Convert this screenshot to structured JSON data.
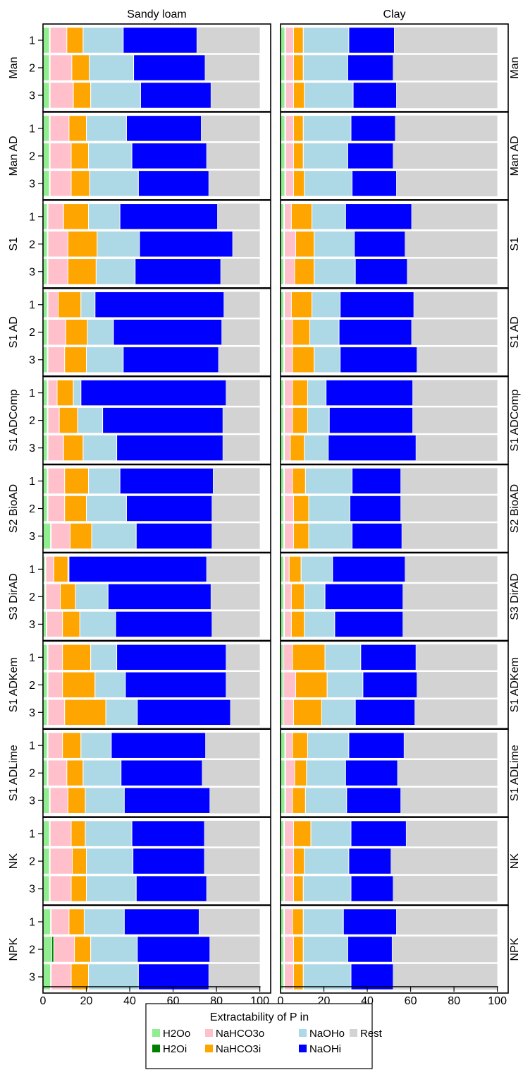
{
  "chart_data": {
    "type": "bar",
    "orientation": "horizontal",
    "stacked": true,
    "facet_titles": [
      "Sandy loam",
      "Clay"
    ],
    "treatments": [
      "Man",
      "Man AD",
      "S1",
      "S1 AD",
      "S1 ADComp",
      "S2 BioAD",
      "S3 DirAD",
      "S1 ADKem",
      "S1 ADLime",
      "NK",
      "NPK"
    ],
    "replicates": [
      "1",
      "2",
      "3"
    ],
    "x_ticks": [
      "0",
      "20",
      "40",
      "60",
      "80",
      "100"
    ],
    "xlim": [
      0,
      105
    ],
    "legend": {
      "title": "Extractability of P in",
      "position": "bottom"
    },
    "series": [
      {
        "name": "H2Oo",
        "color": "#90ee90"
      },
      {
        "name": "H2Oi",
        "color": "#008000"
      },
      {
        "name": "NaHCO3o",
        "color": "#ffc0cb"
      },
      {
        "name": "NaHCO3i",
        "color": "#ffa500"
      },
      {
        "name": "NaOHo",
        "color": "#add8e6"
      },
      {
        "name": "NaOHi",
        "color": "#0000ff"
      },
      {
        "name": "Rest",
        "color": "#d3d3d3"
      }
    ],
    "panels": {
      "Sandy loam": [
        [
          [
            3,
            0.3,
            7.7,
            7.5,
            18.5,
            34,
            29
          ],
          [
            3,
            0.3,
            10,
            8,
            20.5,
            33,
            25
          ],
          [
            3,
            0.3,
            10.7,
            8,
            23,
            32.5,
            22.5
          ]
        ],
        [
          [
            3,
            0.3,
            8.7,
            8,
            18.5,
            34.5,
            27
          ],
          [
            3,
            0.3,
            9.7,
            8,
            20,
            34.5,
            24.5
          ],
          [
            3,
            0.3,
            9.7,
            8.5,
            22.5,
            32.5,
            23.5
          ]
        ],
        [
          [
            2,
            0.3,
            7.2,
            11.5,
            14.5,
            45,
            19.5
          ],
          [
            2,
            0.3,
            9.2,
            13.5,
            19.5,
            43,
            12.5
          ],
          [
            2,
            0.3,
            9.2,
            13,
            18,
            39.5,
            18
          ]
        ],
        [
          [
            2,
            0.3,
            4.7,
            10.5,
            6.5,
            59.5,
            16.5
          ],
          [
            2,
            0.3,
            8.2,
            10,
            12,
            50,
            17.5
          ],
          [
            2,
            0.3,
            7.7,
            10,
            17,
            44,
            19
          ]
        ],
        [
          [
            2,
            0.3,
            4.2,
            7.5,
            3.5,
            67,
            15.5
          ],
          [
            2,
            0.3,
            5.2,
            8.5,
            11.5,
            55.5,
            17
          ],
          [
            2,
            0.3,
            7.2,
            9,
            15.5,
            49,
            17
          ]
        ],
        [
          [
            2,
            0.3,
            7.7,
            11,
            14.5,
            43,
            21.5
          ],
          [
            2,
            0.3,
            7.7,
            10,
            18.5,
            39.5,
            22
          ],
          [
            3.5,
            0.3,
            8.7,
            10,
            20.5,
            35,
            22
          ]
        ],
        [
          [
            1,
            0.3,
            3.7,
            6.5,
            0.5,
            63.5,
            24.5
          ],
          [
            1,
            0.3,
            6.7,
            7,
            15,
            47.5,
            22.5
          ],
          [
            1.5,
            0.3,
            7.2,
            8,
            16.5,
            44.5,
            22
          ]
        ],
        [
          [
            2,
            0.3,
            6.7,
            13,
            12,
            50.5,
            15.5
          ],
          [
            2,
            0.3,
            6.7,
            15,
            14,
            46.5,
            15.5
          ],
          [
            2,
            0.3,
            7.7,
            19,
            14.5,
            43,
            13.5
          ]
        ],
        [
          [
            2,
            0.3,
            6.7,
            8.5,
            14,
            43.5,
            25
          ],
          [
            2,
            0.3,
            8.7,
            7.5,
            17.5,
            37.5,
            26.5
          ],
          [
            3,
            0.3,
            8.2,
            8,
            18,
            39.5,
            23
          ]
        ],
        [
          [
            3,
            0.3,
            9.7,
            6.5,
            21.5,
            33.5,
            25.5
          ],
          [
            3,
            0.3,
            10.2,
            6.5,
            21.5,
            33,
            25.5
          ],
          [
            3,
            0.3,
            9.7,
            7,
            23,
            32.5,
            24.5
          ]
        ],
        [
          [
            3.5,
            0.3,
            8.2,
            7,
            18.5,
            34.5,
            28
          ],
          [
            4,
            1,
            9.5,
            7.5,
            21.5,
            33.5,
            23
          ],
          [
            3.5,
            0.3,
            9.2,
            8,
            23,
            32.5,
            23.5
          ]
        ]
      ],
      "Clay": [
        [
          [
            2,
            0.3,
            3.7,
            4.5,
            21,
            21,
            47.5
          ],
          [
            2,
            0.3,
            3.7,
            4.5,
            20.5,
            21,
            48
          ],
          [
            2,
            0.3,
            3.7,
            5,
            22.5,
            20,
            46.5
          ]
        ],
        [
          [
            2,
            0.3,
            3.7,
            4.5,
            22,
            20.5,
            47
          ],
          [
            2,
            0.3,
            3.7,
            4.5,
            20.5,
            21,
            48
          ],
          [
            2,
            0.3,
            3.7,
            5,
            22,
            20.5,
            46.5
          ]
        ],
        [
          [
            1.5,
            0.3,
            3.2,
            9.5,
            15.5,
            30.5,
            39.5
          ],
          [
            1.5,
            0.3,
            5.2,
            8.5,
            18.5,
            23.5,
            42.5
          ],
          [
            1.5,
            0.3,
            4.7,
            9,
            19,
            24,
            41.5
          ]
        ],
        [
          [
            1.5,
            0.3,
            3.2,
            9.5,
            13,
            34,
            38.5
          ],
          [
            1.5,
            0.3,
            3.7,
            8,
            13.5,
            33.5,
            39.5
          ],
          [
            1.5,
            0.3,
            3.7,
            10,
            12,
            35.5,
            37
          ]
        ],
        [
          [
            1.5,
            0.3,
            3.7,
            7,
            8.5,
            40,
            39
          ],
          [
            1.5,
            0.3,
            3.7,
            7,
            10,
            38.5,
            39
          ],
          [
            1.5,
            0.3,
            2.7,
            6.5,
            11,
            40.5,
            37.5
          ]
        ],
        [
          [
            1.5,
            0.3,
            3.7,
            6,
            21.5,
            22.5,
            44.5
          ],
          [
            1.5,
            0.3,
            4.2,
            7,
            19,
            23.5,
            44.5
          ],
          [
            1.5,
            0.3,
            4.2,
            7,
            20,
            23,
            44
          ]
        ],
        [
          [
            1.5,
            0.3,
            2.2,
            5.5,
            14.5,
            33.5,
            42.5
          ],
          [
            1.5,
            0.3,
            3.2,
            6,
            9.5,
            36,
            43.5
          ],
          [
            1.5,
            0.3,
            3.2,
            6,
            14,
            31.5,
            43.5
          ]
        ],
        [
          [
            1,
            0.5,
            4,
            15,
            16.5,
            25.5,
            37.5
          ],
          [
            1,
            0.5,
            5.5,
            14.5,
            16.5,
            25,
            37
          ],
          [
            1,
            0.5,
            4.5,
            13,
            15.5,
            27.5,
            38
          ]
        ],
        [
          [
            2,
            0.3,
            3.2,
            7,
            19,
            25.5,
            43
          ],
          [
            2,
            0.3,
            4.2,
            5.5,
            18,
            24,
            46
          ],
          [
            2,
            0.3,
            3.2,
            6,
            19,
            25,
            44.5
          ]
        ],
        [
          [
            1.5,
            0.3,
            4.2,
            8,
            18.5,
            25.5,
            42
          ],
          [
            1.5,
            0.3,
            4.2,
            5,
            20.5,
            19.5,
            49
          ],
          [
            1.5,
            0.3,
            4.2,
            4.5,
            22,
            19.5,
            48
          ]
        ],
        [
          [
            1.5,
            0.3,
            3.7,
            5,
            18.5,
            24.5,
            46.5
          ],
          [
            1.5,
            0.3,
            4.2,
            4.5,
            20.5,
            20.5,
            48.5
          ],
          [
            1.5,
            0.3,
            4.2,
            4.5,
            22,
            19.5,
            48
          ]
        ]
      ]
    }
  }
}
